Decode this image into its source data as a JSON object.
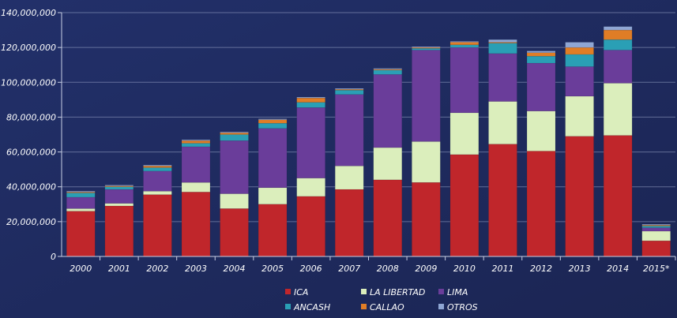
{
  "chart_data": {
    "type": "bar",
    "stacked": true,
    "title": "",
    "xlabel": "",
    "ylabel": "",
    "ylim": [
      0,
      140000000
    ],
    "yticks": [
      0,
      20000000,
      40000000,
      60000000,
      80000000,
      100000000,
      120000000,
      140000000
    ],
    "ytick_labels": [
      "0",
      "20,000,000",
      "40,000,000",
      "60,000,000",
      "80,000,000",
      "100,000,000",
      "120,000,000",
      "140,000,000"
    ],
    "grid": true,
    "legend_position": "bottom",
    "categories": [
      "2000",
      "2001",
      "2002",
      "2003",
      "2004",
      "2005",
      "2006",
      "2007",
      "2008",
      "2009",
      "2010",
      "2011",
      "2012",
      "2013",
      "2014",
      "2015*"
    ],
    "series": [
      {
        "name": "ICA",
        "color": "#c0262b",
        "values": [
          26000000,
          29000000,
          35500000,
          37000000,
          27500000,
          30000000,
          34500000,
          38500000,
          44000000,
          42500000,
          58500000,
          64500000,
          60500000,
          69000000,
          69500000,
          9000000
        ]
      },
      {
        "name": "LA LIBERTAD",
        "color": "#dbeebc",
        "values": [
          1500000,
          1500000,
          2000000,
          5500000,
          8500000,
          9500000,
          10500000,
          13500000,
          18500000,
          23500000,
          24000000,
          24500000,
          23000000,
          23000000,
          30000000,
          5500000
        ]
      },
      {
        "name": "LIMA",
        "color": "#6a3d9a",
        "values": [
          6500000,
          8000000,
          11500000,
          20500000,
          30500000,
          34000000,
          40500000,
          41000000,
          42000000,
          52500000,
          37500000,
          27500000,
          27500000,
          17000000,
          19000000,
          2000000
        ]
      },
      {
        "name": "ANCASH",
        "color": "#2a9fb5",
        "values": [
          2500000,
          1500000,
          2000000,
          2000000,
          3500000,
          3000000,
          3000000,
          2500000,
          2500000,
          1000000,
          1500000,
          6000000,
          4000000,
          7000000,
          6000000,
          1000000
        ]
      },
      {
        "name": "CALLAO",
        "color": "#e07d26",
        "values": [
          500000,
          500000,
          1000000,
          1500000,
          1000000,
          2000000,
          2500000,
          500000,
          500000,
          500000,
          1500000,
          500000,
          2000000,
          4000000,
          5500000,
          500000
        ]
      },
      {
        "name": "OTROS",
        "color": "#8fa6d4",
        "values": [
          500000,
          500000,
          500000,
          500000,
          500000,
          500000,
          500000,
          500000,
          500000,
          500000,
          500000,
          1500000,
          1000000,
          3000000,
          2000000,
          500000
        ]
      }
    ]
  }
}
